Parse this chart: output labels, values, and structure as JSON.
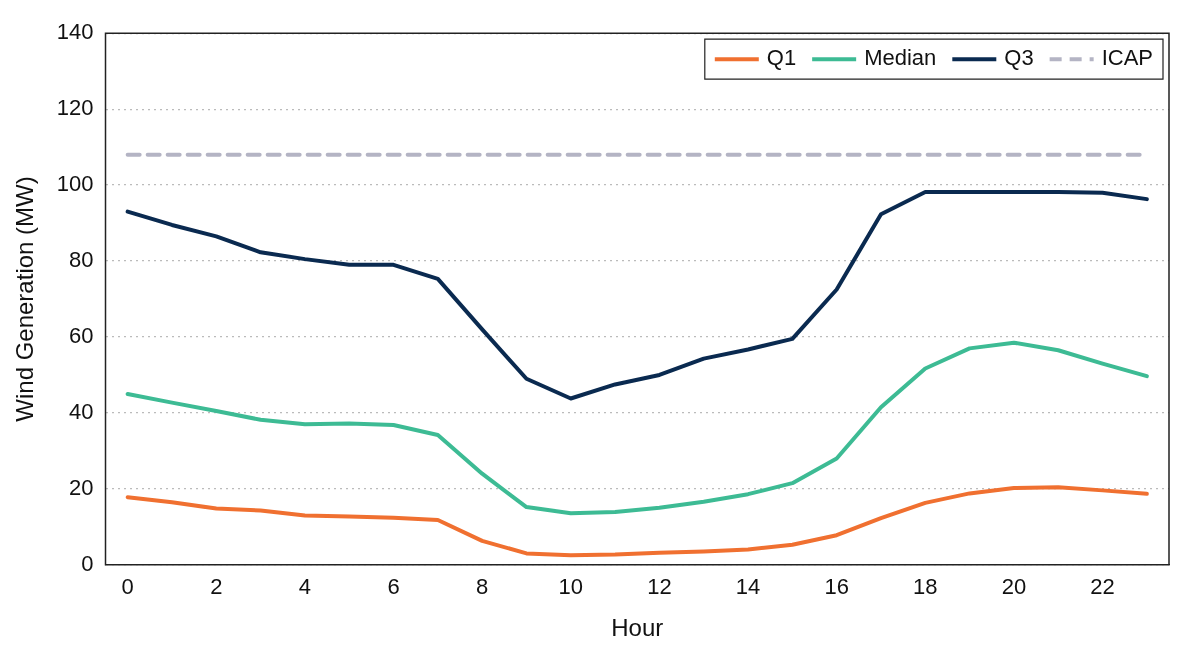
{
  "chart_data": {
    "type": "line",
    "xlabel": "Hour",
    "ylabel": "Wind Generation (MW)",
    "categories": [
      "0",
      null,
      "2",
      null,
      "4",
      null,
      "6",
      null,
      "8",
      null,
      "10",
      null,
      "12",
      null,
      "14",
      null,
      "16",
      null,
      "18",
      null,
      "20",
      null,
      "22",
      null
    ],
    "series": [
      {
        "name": "Q1",
        "color": "#f07030",
        "values": [
          17.8,
          16.5,
          14.8,
          14.3,
          13,
          12.7,
          12.4,
          11.8,
          6.3,
          3,
          2.5,
          2.7,
          3.2,
          3.5,
          4,
          5.3,
          7.8,
          12.3,
          16.3,
          18.8,
          20.2,
          20.4,
          19.6,
          18.7
        ]
      },
      {
        "name": "Median",
        "color": "#3dbb94",
        "values": [
          45,
          42.7,
          40.5,
          38.2,
          37,
          37.2,
          36.8,
          34.2,
          24,
          15.2,
          13.6,
          13.9,
          15,
          16.6,
          18.6,
          21.5,
          28,
          41.5,
          51.7,
          57,
          58.5,
          56.5,
          53,
          49.7
        ]
      },
      {
        "name": "Q3",
        "color": "#0a2a50",
        "values": [
          93,
          89.5,
          86.5,
          82.3,
          80.5,
          79,
          79,
          75.3,
          62,
          49,
          43.8,
          47.5,
          50,
          54.3,
          56.7,
          59.5,
          72.5,
          92.3,
          98.2,
          98.2,
          98.2,
          98.2,
          98,
          96.3
        ]
      },
      {
        "name": "ICAP",
        "color": "#b4b4c4",
        "line_style": "dashed",
        "values": [
          108,
          108,
          108,
          108,
          108,
          108,
          108,
          108,
          108,
          108,
          108,
          108,
          108,
          108,
          108,
          108,
          108,
          108,
          108,
          108,
          108,
          108,
          108,
          108
        ]
      }
    ],
    "ylim": [
      0,
      140
    ],
    "yticks": [
      0,
      20,
      40,
      60,
      80,
      100,
      120,
      140
    ],
    "grid": "y",
    "legend": "top right",
    "marker": "none",
    "line_style": "solid"
  }
}
